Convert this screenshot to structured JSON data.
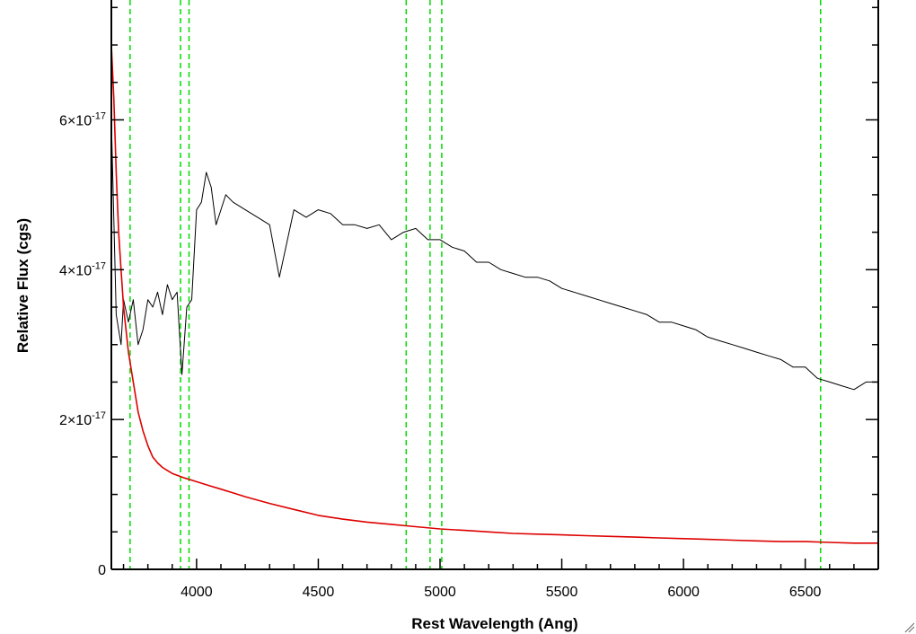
{
  "chart_data": {
    "type": "line",
    "title": "",
    "xlabel": "Rest Wavelength (Ang)",
    "ylabel": "Relative Flux (cgs)",
    "xlim": [
      3650,
      6800
    ],
    "ylim": [
      0,
      7.6e-17
    ],
    "x_ticks": [
      {
        "value": 4000,
        "label": "4000"
      },
      {
        "value": 4500,
        "label": "4500"
      },
      {
        "value": 5000,
        "label": "5000"
      },
      {
        "value": 5500,
        "label": "5500"
      },
      {
        "value": 6000,
        "label": "6000"
      },
      {
        "value": 6500,
        "label": "6500"
      }
    ],
    "y_ticks": [
      {
        "value": 0,
        "mantissa": "0",
        "exponent": ""
      },
      {
        "value": 2e-17,
        "mantissa": "2×10",
        "exponent": "-17"
      },
      {
        "value": 4e-17,
        "mantissa": "4×10",
        "exponent": "-17"
      },
      {
        "value": 6e-17,
        "mantissa": "6×10",
        "exponent": "-17"
      }
    ],
    "vertical_lines": {
      "color": "#00dd00",
      "style": "dashed",
      "x": [
        3727,
        3934,
        3969,
        4861,
        4959,
        5007,
        6563
      ]
    },
    "series": [
      {
        "color": "#000000",
        "x": [
          3650,
          3670,
          3690,
          3700,
          3720,
          3740,
          3760,
          3780,
          3800,
          3820,
          3840,
          3860,
          3880,
          3900,
          3920,
          3940,
          3960,
          3980,
          4000,
          4020,
          4040,
          4060,
          4080,
          4100,
          4120,
          4150,
          4200,
          4250,
          4300,
          4340,
          4400,
          4450,
          4500,
          4550,
          4600,
          4650,
          4700,
          4750,
          4800,
          4850,
          4900,
          4950,
          5000,
          5050,
          5100,
          5150,
          5200,
          5250,
          5300,
          5350,
          5400,
          5450,
          5500,
          5550,
          5600,
          5650,
          5700,
          5750,
          5800,
          5850,
          5900,
          5950,
          6000,
          6050,
          6100,
          6150,
          6200,
          6250,
          6300,
          6350,
          6400,
          6450,
          6500,
          6550,
          6600,
          6650,
          6700,
          6750,
          6800
        ],
        "y": [
          6e-17,
          3.4e-17,
          3e-17,
          3.6e-17,
          3.3e-17,
          3.6e-17,
          3e-17,
          3.2e-17,
          3.6e-17,
          3.5e-17,
          3.7e-17,
          3.4e-17,
          3.8e-17,
          3.6e-17,
          3.7e-17,
          2.6e-17,
          3.5e-17,
          3.6e-17,
          4.8e-17,
          4.9e-17,
          5.3e-17,
          5.1e-17,
          4.6e-17,
          4.8e-17,
          5e-17,
          4.9e-17,
          4.8e-17,
          4.7e-17,
          4.6e-17,
          3.9e-17,
          4.8e-17,
          4.7e-17,
          4.8e-17,
          4.75e-17,
          4.6e-17,
          4.6e-17,
          4.55e-17,
          4.6e-17,
          4.4e-17,
          4.5e-17,
          4.55e-17,
          4.4e-17,
          4.4e-17,
          4.3e-17,
          4.25e-17,
          4.1e-17,
          4.1e-17,
          4e-17,
          3.95e-17,
          3.9e-17,
          3.9e-17,
          3.85e-17,
          3.75e-17,
          3.7e-17,
          3.65e-17,
          3.6e-17,
          3.55e-17,
          3.5e-17,
          3.45e-17,
          3.4e-17,
          3.3e-17,
          3.3e-17,
          3.25e-17,
          3.2e-17,
          3.1e-17,
          3.05e-17,
          3e-17,
          2.95e-17,
          2.9e-17,
          2.85e-17,
          2.8e-17,
          2.7e-17,
          2.7e-17,
          2.55e-17,
          2.5e-17,
          2.45e-17,
          2.4e-17,
          2.5e-17,
          2.5e-17
        ]
      },
      {
        "color": "#dd0000",
        "x": [
          3650,
          3660,
          3670,
          3680,
          3690,
          3700,
          3720,
          3740,
          3760,
          3780,
          3800,
          3820,
          3840,
          3860,
          3880,
          3900,
          3950,
          4000,
          4050,
          4100,
          4150,
          4200,
          4300,
          4400,
          4500,
          4600,
          4700,
          4800,
          4900,
          5000,
          5100,
          5200,
          5300,
          5400,
          5500,
          5600,
          5700,
          5800,
          5900,
          6000,
          6100,
          6200,
          6300,
          6400,
          6500,
          6600,
          6700,
          6800
        ],
        "y": [
          7e-17,
          6.3e-17,
          5.3e-17,
          4.5e-17,
          4e-17,
          3.5e-17,
          2.9e-17,
          2.5e-17,
          2.1e-17,
          1.85e-17,
          1.65e-17,
          1.5e-17,
          1.42e-17,
          1.36e-17,
          1.32e-17,
          1.28e-17,
          1.22e-17,
          1.17e-17,
          1.12e-17,
          1.07e-17,
          1.02e-17,
          9.7e-18,
          8.8e-18,
          8e-18,
          7.2e-18,
          6.7e-18,
          6.3e-18,
          6e-18,
          5.7e-18,
          5.4e-18,
          5.2e-18,
          5e-18,
          4.8e-18,
          4.7e-18,
          4.6e-18,
          4.5e-18,
          4.4e-18,
          4.3e-18,
          4.2e-18,
          4.1e-18,
          4e-18,
          3.9e-18,
          3.8e-18,
          3.7e-18,
          3.7e-18,
          3.6e-18,
          3.5e-18,
          3.5e-18
        ]
      }
    ]
  }
}
